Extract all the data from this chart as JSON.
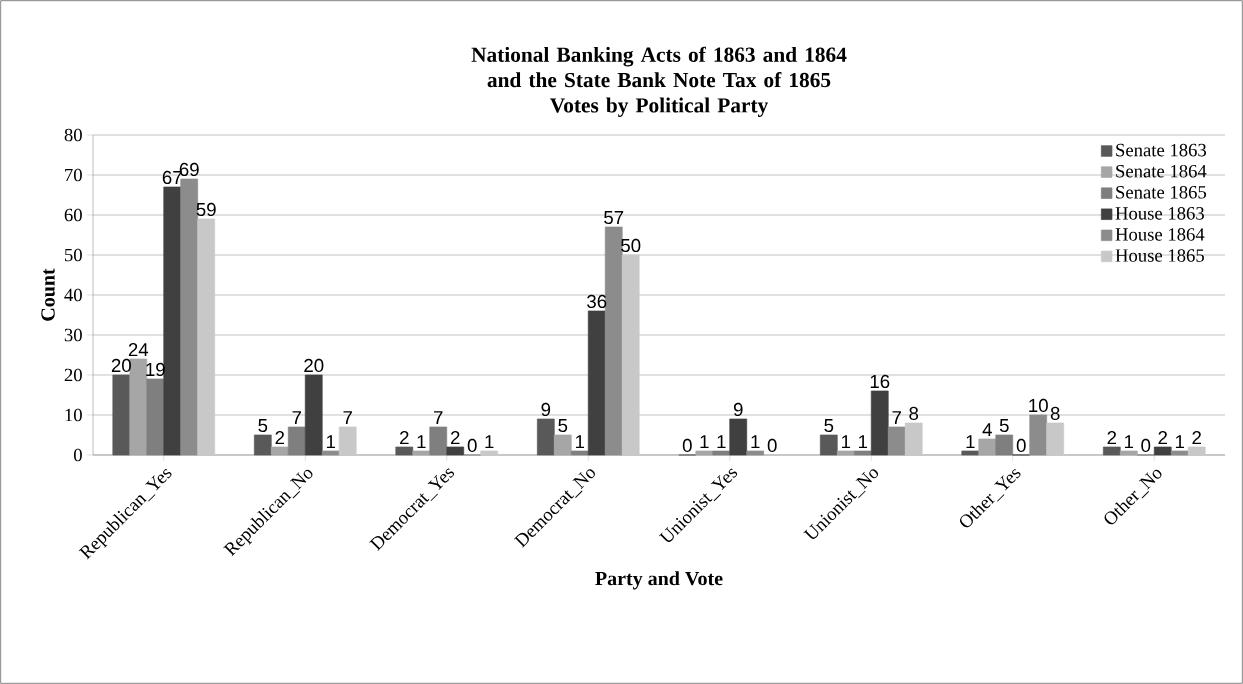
{
  "chart_data": {
    "type": "bar",
    "title": "National Banking Acts of 1863 and 1864 and the State Bank Note Tax of 1865",
    "subtitle": "Votes by Political Party",
    "xlabel": "Party and Vote",
    "ylabel": "Count",
    "categories": [
      "Republican_Yes",
      "Republican_No",
      "Democrat_Yes",
      "Democrat_No",
      "Unionist_Yes",
      "Unionist_No",
      "Other_Yes",
      "Other_No"
    ],
    "series": [
      {
        "name": "Senate 1863",
        "color": "#595959",
        "values": [
          20,
          5,
          2,
          9,
          0,
          5,
          1,
          2
        ]
      },
      {
        "name": "Senate 1864",
        "color": "#a6a6a6",
        "values": [
          24,
          2,
          1,
          5,
          1,
          1,
          4,
          1
        ]
      },
      {
        "name": "Senate 1865",
        "color": "#7f7f7f",
        "values": [
          19,
          7,
          7,
          1,
          1,
          1,
          5,
          0
        ]
      },
      {
        "name": "House 1863",
        "color": "#404040",
        "values": [
          67,
          20,
          2,
          36,
          9,
          16,
          0,
          2
        ]
      },
      {
        "name": "House 1864",
        "color": "#8c8c8c",
        "values": [
          69,
          1,
          0,
          57,
          1,
          7,
          10,
          1
        ]
      },
      {
        "name": "House 1865",
        "color": "#c8c8c8",
        "values": [
          59,
          7,
          1,
          50,
          0,
          8,
          8,
          2
        ]
      }
    ],
    "ylim": [
      0,
      80
    ],
    "yticks": [
      0,
      10,
      20,
      30,
      40,
      50,
      60,
      70,
      80
    ],
    "grid": "y",
    "legend": "top right",
    "data_labels": true
  }
}
